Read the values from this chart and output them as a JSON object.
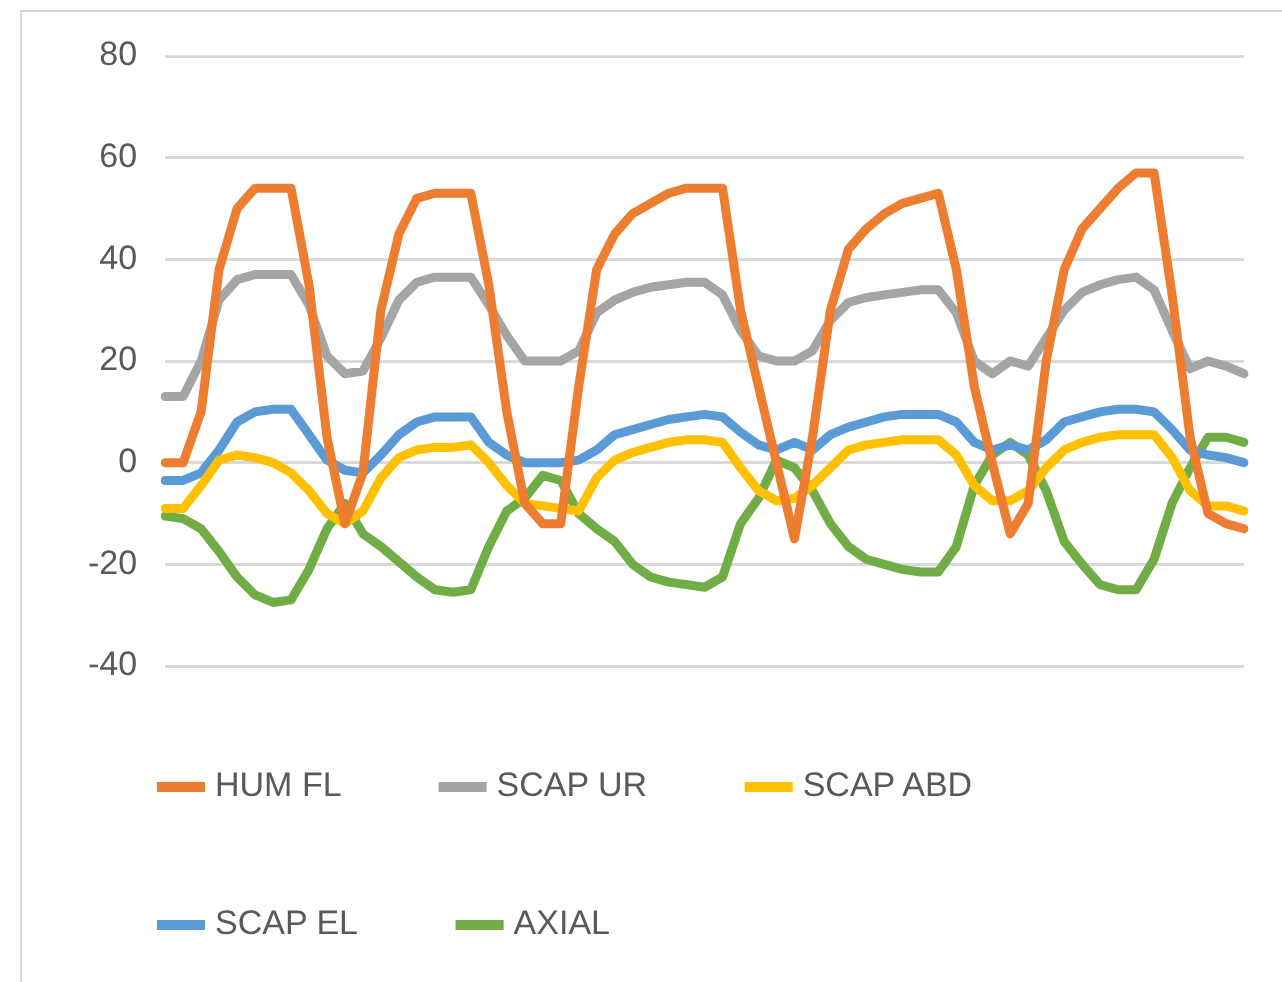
{
  "chart_data": {
    "type": "line",
    "categories": [
      null,
      null,
      null,
      null,
      null,
      null,
      null,
      null,
      null,
      null,
      null,
      null,
      null,
      null,
      null,
      null,
      null,
      null,
      null,
      null,
      null,
      null,
      null,
      null,
      null,
      null,
      null,
      null,
      null,
      null,
      null,
      null,
      null,
      null,
      null,
      null,
      null,
      null,
      null,
      null,
      null,
      null,
      null,
      null,
      null,
      null,
      null,
      null,
      null,
      null,
      null,
      null,
      null,
      null,
      null,
      null,
      null,
      null,
      null,
      null,
      null
    ],
    "series": [
      {
        "name": "HUM FL",
        "color": "#ed7d31",
        "values": [
          0,
          0,
          10,
          38,
          50,
          54,
          54,
          54,
          35,
          5,
          -12,
          -2,
          30,
          45,
          52,
          53,
          53,
          53,
          35,
          10,
          -8,
          -12,
          -12,
          15,
          38,
          45,
          49,
          51,
          53,
          54,
          54,
          54,
          30,
          15,
          0,
          -15,
          5,
          30,
          42,
          46,
          49,
          51,
          52,
          53,
          38,
          15,
          0,
          -14,
          -8,
          20,
          38,
          46,
          50,
          54,
          57,
          57,
          33,
          5,
          -10,
          -12,
          -13
        ]
      },
      {
        "name": "SCAP UR",
        "color": "#a5a5a5",
        "values": [
          13,
          13,
          20,
          32,
          36,
          37,
          37,
          37,
          31,
          21,
          17.5,
          18,
          24.5,
          32,
          35.5,
          36.5,
          36.5,
          36.5,
          31,
          25,
          20,
          20,
          20,
          22,
          29.5,
          32,
          33.5,
          34.5,
          35,
          35.5,
          35.5,
          33,
          26,
          21,
          20,
          20,
          22,
          28,
          31.5,
          32.5,
          33,
          33.5,
          34,
          34,
          29.5,
          20,
          17.5,
          20,
          19,
          24.5,
          30,
          33.5,
          35,
          36,
          36.5,
          34,
          26,
          18.5,
          20,
          19,
          17.5
        ]
      },
      {
        "name": "SCAP ABD",
        "color": "#ffc000",
        "values": [
          -9,
          -9,
          -4.5,
          0.5,
          1.5,
          1,
          0,
          -2,
          -5.5,
          -10,
          -12,
          -9.5,
          -3,
          1,
          2.5,
          3,
          3,
          3.5,
          0,
          -4.5,
          -8,
          -8.5,
          -9,
          -9.5,
          -3,
          0.5,
          2,
          3,
          4,
          4.5,
          4.5,
          4,
          -1,
          -5.5,
          -7.5,
          -7,
          -4.5,
          -1,
          2.5,
          3.5,
          4,
          4.5,
          4.5,
          4.5,
          1.5,
          -4.5,
          -7.5,
          -7.5,
          -5.5,
          -1,
          2.5,
          4,
          5,
          5.5,
          5.5,
          5.5,
          1,
          -5.5,
          -8.5,
          -8.5,
          -9.5
        ]
      },
      {
        "name": "SCAP EL",
        "color": "#5b9bd5",
        "values": [
          -3.5,
          -3.5,
          -2,
          2.5,
          8,
          10,
          10.5,
          10.5,
          5.5,
          0.5,
          -1.5,
          -2,
          1.5,
          5.5,
          8,
          9,
          9,
          9,
          4,
          1.5,
          0,
          0,
          0,
          0.5,
          2.5,
          5.5,
          6.5,
          7.5,
          8.5,
          9,
          9.5,
          9,
          6,
          3.5,
          2.5,
          4,
          2.5,
          5.5,
          7,
          8,
          9,
          9.5,
          9.5,
          9.5,
          8,
          4,
          2.5,
          3.5,
          2.5,
          4.5,
          8,
          9,
          10,
          10.5,
          10.5,
          10,
          6.5,
          2.5,
          1.5,
          1,
          0
        ]
      },
      {
        "name": "AXIAL",
        "color": "#70ad47",
        "values": [
          -10.5,
          -11,
          -13,
          -17.5,
          -22.5,
          -26,
          -27.5,
          -27,
          -21,
          -13,
          -8,
          -14,
          -16.5,
          -19.5,
          -22.5,
          -25,
          -25.5,
          -25,
          -16.5,
          -9.5,
          -7,
          -2.5,
          -3.5,
          -10,
          -13,
          -15.5,
          -20,
          -22.5,
          -23.5,
          -24,
          -24.5,
          -22.5,
          -12,
          -7,
          0.5,
          -1,
          -5.5,
          -12,
          -16.5,
          -19,
          -20,
          -21,
          -21.5,
          -21.5,
          -16.5,
          -4.5,
          1.5,
          4,
          1.5,
          -5.5,
          -15.5,
          -20,
          -24,
          -25,
          -25,
          -19,
          -8,
          -1,
          5,
          5,
          4
        ]
      }
    ],
    "ylim": [
      -40,
      80
    ],
    "yticks": [
      -40,
      -20,
      0,
      20,
      40,
      60,
      80
    ],
    "grid": "y",
    "legend": "bottom",
    "marker": "none",
    "line_style": "solid"
  }
}
